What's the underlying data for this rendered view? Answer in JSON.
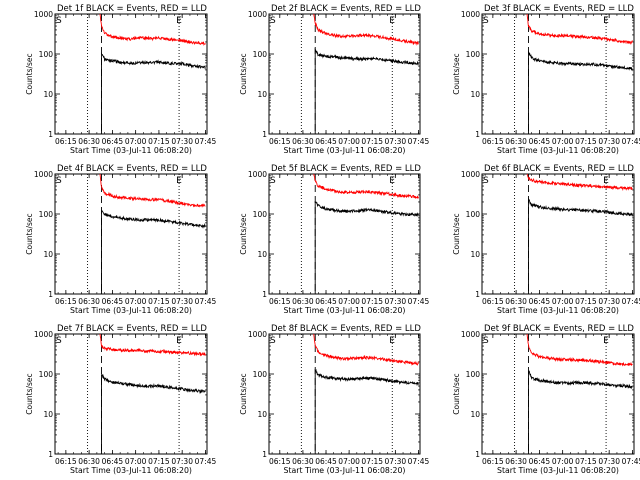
{
  "chart_data": [
    {
      "type": "line",
      "title": "Det 1f BLACK = Events, RED = LLD",
      "xlabel": "Start Time (03-Jul-11 06:08:20)",
      "ylabel": "Counts/sec",
      "yscale": "log",
      "ylim": [
        1,
        1000
      ],
      "xlim": [
        "06:08",
        "07:46"
      ],
      "xticks": [
        "06:15",
        "06:30",
        "06:45",
        "07:00",
        "07:15",
        "07:30",
        "07:45"
      ],
      "yticks": [
        "1",
        "10",
        "100",
        "1000"
      ],
      "grid": false,
      "marker_S": "06:38",
      "marker_E": "07:28",
      "dotted_lines": [
        "06:29",
        "07:28"
      ],
      "dashed_line": "06:38",
      "x": [
        "06:37",
        "06:38",
        "06:40",
        "06:45",
        "06:50",
        "06:55",
        "07:00",
        "07:05",
        "07:10",
        "07:15",
        "07:20",
        "07:25",
        "07:30",
        "07:35",
        "07:40",
        "07:45"
      ],
      "series": [
        {
          "name": "Events",
          "color": "#000000",
          "values": [
            null,
            100,
            74,
            68,
            62,
            60,
            59,
            61,
            62,
            63,
            60,
            57,
            58,
            52,
            49,
            46
          ]
        },
        {
          "name": "LLD",
          "color": "#ff0000",
          "values": [
            1000,
            500,
            330,
            270,
            255,
            235,
            245,
            250,
            245,
            250,
            240,
            225,
            215,
            200,
            190,
            185
          ]
        }
      ]
    },
    {
      "type": "line",
      "title": "Det 2f BLACK = Events, RED = LLD",
      "xlabel": "Start Time (03-Jul-11 06:08:20)",
      "ylabel": "Counts/sec",
      "yscale": "log",
      "ylim": [
        1,
        1000
      ],
      "xlim": [
        "06:08",
        "07:46"
      ],
      "xticks": [
        "06:15",
        "06:30",
        "06:45",
        "07:00",
        "07:15",
        "07:30",
        "07:45"
      ],
      "yticks": [
        "1",
        "10",
        "100",
        "1000"
      ],
      "grid": false,
      "marker_S": "06:38",
      "marker_E": "07:28",
      "dotted_lines": [
        "06:29",
        "07:28"
      ],
      "dashed_line": "06:38",
      "x": [
        "06:37",
        "06:38",
        "06:40",
        "06:45",
        "06:50",
        "06:55",
        "07:00",
        "07:05",
        "07:10",
        "07:15",
        "07:20",
        "07:25",
        "07:30",
        "07:35",
        "07:40",
        "07:45"
      ],
      "series": [
        {
          "name": "Events",
          "color": "#000000",
          "values": [
            null,
            130,
            95,
            88,
            85,
            80,
            78,
            76,
            74,
            78,
            75,
            70,
            65,
            62,
            60,
            58
          ]
        },
        {
          "name": "LLD",
          "color": "#ff0000",
          "values": [
            1000,
            600,
            400,
            320,
            290,
            275,
            280,
            285,
            290,
            280,
            270,
            250,
            230,
            215,
            200,
            190
          ]
        }
      ]
    },
    {
      "type": "line",
      "title": "Det 3f BLACK = Events, RED = LLD",
      "xlabel": "Start Time (03-Jul-11 06:08:20)",
      "ylabel": "Counts/sec",
      "yscale": "log",
      "ylim": [
        1,
        1000
      ],
      "xlim": [
        "06:08",
        "07:46"
      ],
      "xticks": [
        "06:15",
        "06:30",
        "06:45",
        "07:00",
        "07:15",
        "07:30",
        "07:45"
      ],
      "yticks": [
        "1",
        "10",
        "100",
        "1000"
      ],
      "grid": false,
      "marker_S": "06:38",
      "marker_E": "07:28",
      "dotted_lines": [
        "06:29",
        "07:28"
      ],
      "dashed_line": "06:38",
      "x": [
        "06:37",
        "06:38",
        "06:40",
        "06:45",
        "06:50",
        "06:55",
        "07:00",
        "07:05",
        "07:10",
        "07:15",
        "07:20",
        "07:25",
        "07:30",
        "07:35",
        "07:40",
        "07:45"
      ],
      "series": [
        {
          "name": "Events",
          "color": "#000000",
          "values": [
            null,
            110,
            80,
            68,
            62,
            60,
            58,
            57,
            56,
            56,
            55,
            53,
            50,
            47,
            45,
            43
          ]
        },
        {
          "name": "LLD",
          "color": "#ff0000",
          "values": [
            1000,
            500,
            370,
            320,
            300,
            290,
            285,
            280,
            270,
            265,
            255,
            245,
            230,
            215,
            200,
            195
          ]
        }
      ]
    },
    {
      "type": "line",
      "title": "Det 4f BLACK = Events, RED = LLD",
      "xlabel": "Start Time (03-Jul-11 06:08:20)",
      "ylabel": "Counts/sec",
      "yscale": "log",
      "ylim": [
        1,
        1000
      ],
      "xlim": [
        "06:08",
        "07:46"
      ],
      "xticks": [
        "06:15",
        "06:30",
        "06:45",
        "07:00",
        "07:15",
        "07:30",
        "07:45"
      ],
      "yticks": [
        "1",
        "10",
        "100",
        "1000"
      ],
      "grid": false,
      "marker_S": "06:38",
      "marker_E": "07:28",
      "dotted_lines": [
        "06:29",
        "07:28"
      ],
      "dashed_line": "06:38",
      "x": [
        "06:37",
        "06:38",
        "06:40",
        "06:45",
        "06:50",
        "06:55",
        "07:00",
        "07:05",
        "07:10",
        "07:15",
        "07:20",
        "07:25",
        "07:30",
        "07:35",
        "07:40",
        "07:45"
      ],
      "series": [
        {
          "name": "Events",
          "color": "#000000",
          "values": [
            null,
            120,
            100,
            85,
            80,
            75,
            72,
            70,
            72,
            70,
            65,
            63,
            58,
            55,
            52,
            50
          ]
        },
        {
          "name": "LLD",
          "color": "#ff0000",
          "values": [
            1000,
            450,
            330,
            280,
            260,
            250,
            240,
            235,
            230,
            225,
            215,
            200,
            185,
            175,
            165,
            160
          ]
        }
      ]
    },
    {
      "type": "line",
      "title": "Det 5f BLACK = Events, RED = LLD",
      "xlabel": "Start Time (03-Jul-11 06:08:20)",
      "ylabel": "Counts/sec",
      "yscale": "log",
      "ylim": [
        1,
        1000
      ],
      "xlim": [
        "06:08",
        "07:46"
      ],
      "xticks": [
        "06:15",
        "06:30",
        "06:45",
        "07:00",
        "07:15",
        "07:30",
        "07:45"
      ],
      "yticks": [
        "1",
        "10",
        "100",
        "1000"
      ],
      "grid": false,
      "marker_S": "06:38",
      "marker_E": "07:28",
      "dotted_lines": [
        "06:29",
        "07:28"
      ],
      "dashed_line": "06:38",
      "x": [
        "06:37",
        "06:38",
        "06:40",
        "06:45",
        "06:50",
        "06:55",
        "07:00",
        "07:05",
        "07:10",
        "07:15",
        "07:20",
        "07:25",
        "07:30",
        "07:35",
        "07:40",
        "07:45"
      ],
      "series": [
        {
          "name": "Events",
          "color": "#000000",
          "values": [
            null,
            200,
            160,
            135,
            125,
            118,
            115,
            120,
            125,
            125,
            118,
            110,
            105,
            100,
            98,
            95
          ]
        },
        {
          "name": "LLD",
          "color": "#ff0000",
          "values": [
            1000,
            650,
            500,
            420,
            380,
            350,
            340,
            350,
            360,
            355,
            340,
            320,
            300,
            285,
            275,
            265
          ]
        }
      ]
    },
    {
      "type": "line",
      "title": "Det 6f BLACK = Events, RED = LLD",
      "xlabel": "Start Time (03-Jul-11 06:08:20)",
      "ylabel": "Counts/sec",
      "yscale": "log",
      "ylim": [
        1,
        1000
      ],
      "xlim": [
        "06:08",
        "07:46"
      ],
      "xticks": [
        "06:15",
        "06:30",
        "06:45",
        "07:00",
        "07:15",
        "07:30",
        "07:45"
      ],
      "yticks": [
        "1",
        "10",
        "100",
        "1000"
      ],
      "grid": false,
      "marker_S": "06:38",
      "marker_E": "07:28",
      "dotted_lines": [
        "06:29",
        "07:28"
      ],
      "dashed_line": "06:38",
      "x": [
        "06:37",
        "06:38",
        "06:40",
        "06:45",
        "06:50",
        "06:55",
        "07:00",
        "07:05",
        "07:10",
        "07:15",
        "07:20",
        "07:25",
        "07:30",
        "07:35",
        "07:40",
        "07:45"
      ],
      "series": [
        {
          "name": "Events",
          "color": "#000000",
          "values": [
            null,
            230,
            170,
            150,
            140,
            135,
            130,
            128,
            125,
            123,
            120,
            118,
            110,
            105,
            100,
            98
          ]
        },
        {
          "name": "LLD",
          "color": "#ff0000",
          "values": [
            1000,
            800,
            700,
            640,
            610,
            580,
            560,
            540,
            520,
            510,
            500,
            480,
            470,
            455,
            440,
            430
          ]
        }
      ]
    },
    {
      "type": "line",
      "title": "Det 7f BLACK = Events, RED = LLD",
      "xlabel": "Start Time (03-Jul-11 06:08:20)",
      "ylabel": "Counts/sec",
      "yscale": "log",
      "ylim": [
        1,
        1000
      ],
      "xlim": [
        "06:08",
        "07:46"
      ],
      "xticks": [
        "06:15",
        "06:30",
        "06:45",
        "07:00",
        "07:15",
        "07:30",
        "07:45"
      ],
      "yticks": [
        "1",
        "10",
        "100",
        "1000"
      ],
      "grid": false,
      "marker_S": "06:38",
      "marker_E": "07:28",
      "dotted_lines": [
        "06:29",
        "07:28"
      ],
      "dashed_line": "06:38",
      "x": [
        "06:37",
        "06:38",
        "06:40",
        "06:45",
        "06:50",
        "06:55",
        "07:00",
        "07:05",
        "07:10",
        "07:15",
        "07:20",
        "07:25",
        "07:30",
        "07:35",
        "07:40",
        "07:45"
      ],
      "series": [
        {
          "name": "Events",
          "color": "#000000",
          "values": [
            null,
            95,
            75,
            62,
            58,
            55,
            52,
            50,
            50,
            50,
            48,
            45,
            42,
            40,
            38,
            36
          ]
        },
        {
          "name": "LLD",
          "color": "#ff0000",
          "values": [
            1000,
            500,
            440,
            410,
            400,
            390,
            385,
            380,
            375,
            370,
            360,
            350,
            340,
            330,
            320,
            310
          ]
        }
      ]
    },
    {
      "type": "line",
      "title": "Det 8f BLACK = Events, RED = LLD",
      "xlabel": "Start Time (03-Jul-11 06:08:20)",
      "ylabel": "Counts/sec",
      "yscale": "log",
      "ylim": [
        1,
        1000
      ],
      "xlim": [
        "06:08",
        "07:46"
      ],
      "xticks": [
        "06:15",
        "06:30",
        "06:45",
        "07:00",
        "07:15",
        "07:30",
        "07:45"
      ],
      "yticks": [
        "1",
        "10",
        "100",
        "1000"
      ],
      "grid": false,
      "marker_S": "06:38",
      "marker_E": "07:28",
      "dotted_lines": [
        "06:29",
        "07:28"
      ],
      "dashed_line": "06:38",
      "x": [
        "06:37",
        "06:38",
        "06:40",
        "06:45",
        "06:50",
        "06:55",
        "07:00",
        "07:05",
        "07:10",
        "07:15",
        "07:20",
        "07:25",
        "07:30",
        "07:35",
        "07:40",
        "07:45"
      ],
      "series": [
        {
          "name": "Events",
          "color": "#000000",
          "values": [
            null,
            125,
            95,
            82,
            78,
            75,
            74,
            76,
            78,
            78,
            74,
            70,
            65,
            62,
            60,
            58
          ]
        },
        {
          "name": "LLD",
          "color": "#ff0000",
          "values": [
            1000,
            500,
            360,
            290,
            260,
            245,
            240,
            250,
            260,
            255,
            240,
            225,
            210,
            200,
            190,
            180
          ]
        }
      ]
    },
    {
      "type": "line",
      "title": "Det 9f BLACK = Events, RED = LLD",
      "xlabel": "Start Time (03-Jul-11 06:08:20)",
      "ylabel": "Counts/sec",
      "yscale": "log",
      "ylim": [
        1,
        1000
      ],
      "xlim": [
        "06:08",
        "07:46"
      ],
      "xticks": [
        "06:15",
        "06:30",
        "06:45",
        "07:00",
        "07:15",
        "07:30",
        "07:45"
      ],
      "yticks": [
        "1",
        "10",
        "100",
        "1000"
      ],
      "grid": false,
      "marker_S": "06:38",
      "marker_E": "07:28",
      "dotted_lines": [
        "06:29",
        "07:28"
      ],
      "dashed_line": "06:38",
      "x": [
        "06:37",
        "06:38",
        "06:40",
        "06:45",
        "06:50",
        "06:55",
        "07:00",
        "07:05",
        "07:10",
        "07:15",
        "07:20",
        "07:25",
        "07:30",
        "07:35",
        "07:40",
        "07:45"
      ],
      "series": [
        {
          "name": "Events",
          "color": "#000000",
          "values": [
            null,
            120,
            80,
            70,
            65,
            62,
            60,
            60,
            60,
            60,
            58,
            56,
            54,
            52,
            50,
            48
          ]
        },
        {
          "name": "LLD",
          "color": "#ff0000",
          "values": [
            1000,
            500,
            330,
            270,
            250,
            235,
            230,
            230,
            225,
            220,
            210,
            200,
            190,
            180,
            175,
            170
          ]
        }
      ]
    }
  ]
}
